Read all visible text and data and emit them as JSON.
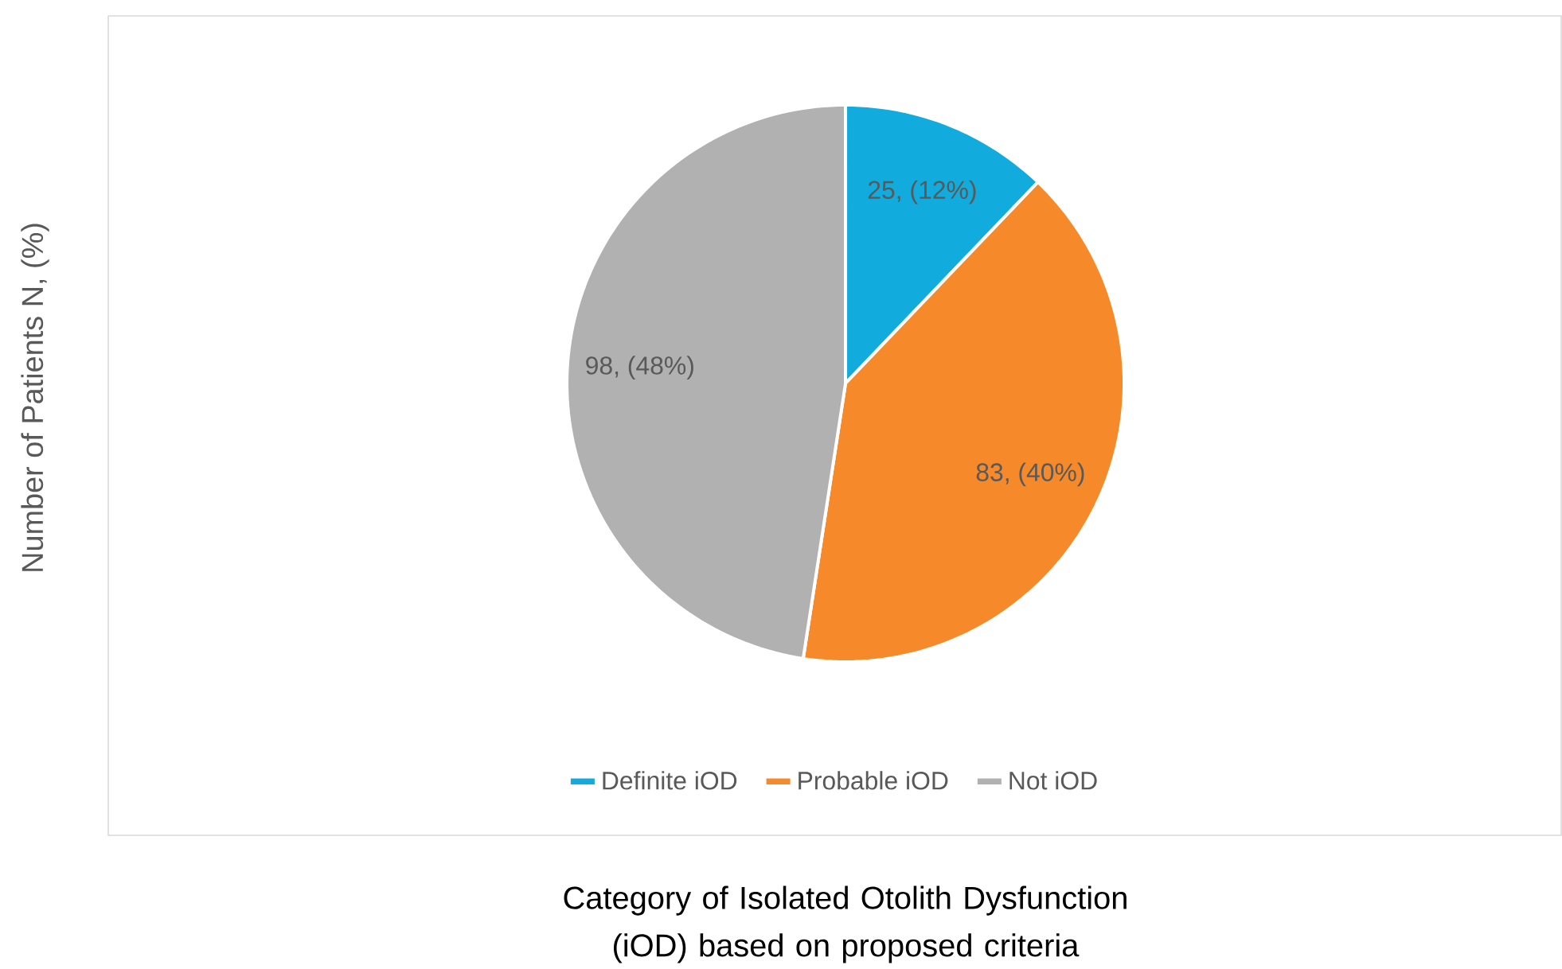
{
  "chart_data": {
    "type": "pie",
    "categories": [
      "Definite iOD",
      "Probable iOD",
      "Not iOD"
    ],
    "values": [
      25,
      83,
      98
    ],
    "colors": [
      "#12abdd",
      "#f68a2a",
      "#b1b1b1"
    ],
    "value_labels": [
      "25, (12%)",
      "83, (40%)",
      "98, (48%)"
    ],
    "xlabel": "Category of Isolated Otolith Dysfunction (iOD) based on proposed criteria",
    "ylabel": "Number of Patients N, (%)",
    "legend": "bottom"
  }
}
